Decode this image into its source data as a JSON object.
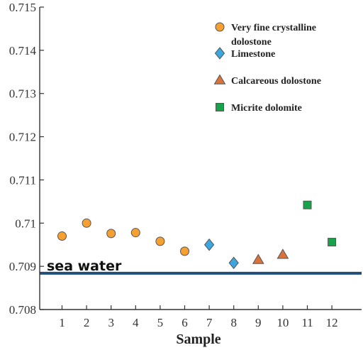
{
  "chart_data": {
    "type": "scatter",
    "xlabel": "Sample",
    "ylabel": "",
    "xlim": [
      0,
      12.5
    ],
    "ylim": [
      0.708,
      0.715
    ],
    "x_ticks": [
      "1",
      "2",
      "3",
      "4",
      "5",
      "6",
      "7",
      "8",
      "9",
      "10",
      "11",
      "12"
    ],
    "y_ticks": [
      "0.715",
      "0.714",
      "0.713",
      "0.712",
      "0.711",
      "0.71",
      "0.709",
      "0.708"
    ],
    "grid": false,
    "legend_position": "top-right",
    "series": [
      {
        "name": "Very fine crystalline dolostone",
        "marker": "circle",
        "color": "#F5A030",
        "points": [
          [
            1,
            0.7097
          ],
          [
            2,
            0.71
          ],
          [
            3,
            0.70976
          ],
          [
            4,
            0.70978
          ],
          [
            5,
            0.70958
          ],
          [
            6,
            0.70935
          ]
        ]
      },
      {
        "name": "Limestone",
        "marker": "diamond",
        "color": "#3BA6E0",
        "points": [
          [
            7,
            0.7095
          ],
          [
            8,
            0.70908
          ]
        ]
      },
      {
        "name": "Calcareous dolostone",
        "marker": "triangle",
        "color": "#D9733B",
        "points": [
          [
            9,
            0.70915
          ],
          [
            10,
            0.70927
          ]
        ]
      },
      {
        "name": "Micrite dolomite",
        "marker": "square",
        "color": "#17A34A",
        "points": [
          [
            11,
            0.71042
          ],
          [
            12,
            0.70956
          ]
        ]
      }
    ],
    "reference_line": {
      "label": "sea water",
      "y": 0.70884,
      "color": "#1F4E79"
    }
  }
}
